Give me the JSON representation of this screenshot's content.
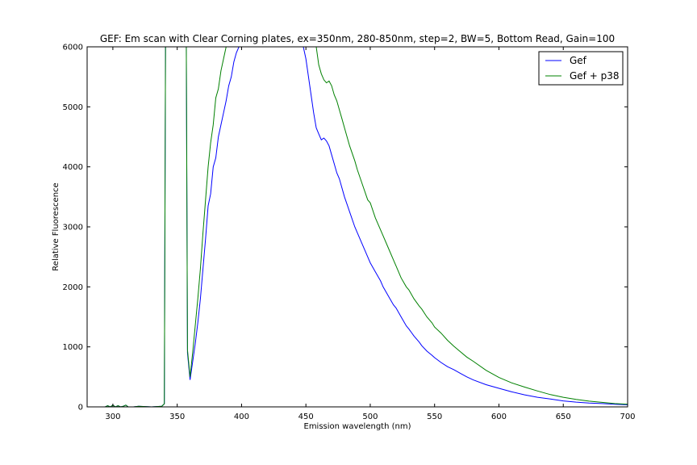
{
  "chart_data": {
    "type": "line",
    "title": "GEF: Em scan with Clear Corning plates, ex=350nm, 280-850nm, step=2, BW=5, Bottom Read, Gain=100",
    "xlabel": "Emission wavelength (nm)",
    "ylabel": "Relative Fluorescence",
    "xlim": [
      280,
      700
    ],
    "ylim": [
      0,
      6000
    ],
    "xticks": [
      300,
      350,
      400,
      450,
      500,
      550,
      600,
      650,
      700
    ],
    "yticks": [
      0,
      1000,
      2000,
      3000,
      4000,
      5000,
      6000
    ],
    "grid": false,
    "legend": "top-right",
    "series": [
      {
        "name": "Gef",
        "color": "#0000ff",
        "x": [
          280,
          290,
          294,
          296,
          298,
          300,
          302,
          304,
          306,
          308,
          310,
          312,
          316,
          320,
          330,
          338,
          340,
          341,
          342,
          344,
          350,
          356,
          357,
          358,
          360,
          362,
          364,
          366,
          368,
          370,
          372,
          374,
          376,
          378,
          380,
          382,
          384,
          386,
          388,
          390,
          392,
          394,
          396,
          398,
          400,
          440,
          446,
          448,
          450,
          452,
          454,
          456,
          458,
          460,
          462,
          464,
          466,
          468,
          470,
          472,
          474,
          476,
          480,
          484,
          488,
          490,
          494,
          498,
          500,
          504,
          508,
          510,
          514,
          518,
          520,
          524,
          528,
          530,
          534,
          538,
          540,
          544,
          548,
          550,
          555,
          560,
          565,
          570,
          575,
          580,
          590,
          600,
          610,
          620,
          630,
          640,
          650,
          660,
          670,
          680,
          690,
          700
        ],
        "y": [
          0,
          0,
          0,
          20,
          0,
          30,
          0,
          20,
          0,
          10,
          30,
          0,
          0,
          10,
          0,
          10,
          50,
          6500,
          6500,
          6500,
          6500,
          6500,
          6500,
          900,
          450,
          750,
          1050,
          1400,
          1800,
          2300,
          2800,
          3350,
          3550,
          4000,
          4150,
          4500,
          4700,
          4900,
          5100,
          5350,
          5500,
          5750,
          5900,
          6000,
          6500,
          6500,
          6300,
          6000,
          5800,
          5500,
          5200,
          4900,
          4650,
          4550,
          4450,
          4480,
          4430,
          4350,
          4200,
          4050,
          3900,
          3800,
          3500,
          3250,
          3000,
          2900,
          2700,
          2500,
          2400,
          2250,
          2100,
          2000,
          1850,
          1700,
          1650,
          1500,
          1350,
          1300,
          1180,
          1080,
          1020,
          930,
          860,
          820,
          740,
          670,
          620,
          560,
          500,
          450,
          370,
          310,
          250,
          200,
          160,
          130,
          100,
          80,
          65,
          55,
          45,
          35
        ]
      },
      {
        "name": "Gef + p38",
        "color": "#008000",
        "x": [
          280,
          290,
          294,
          296,
          298,
          300,
          302,
          304,
          306,
          308,
          310,
          312,
          316,
          320,
          330,
          338,
          340,
          341,
          342,
          344,
          350,
          356,
          357,
          358,
          360,
          362,
          364,
          366,
          368,
          370,
          372,
          374,
          376,
          378,
          380,
          382,
          384,
          386,
          388,
          390,
          392,
          394,
          396,
          456,
          458,
          460,
          462,
          464,
          466,
          468,
          470,
          472,
          474,
          476,
          478,
          480,
          484,
          488,
          490,
          494,
          498,
          500,
          504,
          508,
          510,
          514,
          518,
          520,
          524,
          528,
          530,
          534,
          538,
          540,
          544,
          548,
          550,
          555,
          560,
          565,
          570,
          575,
          580,
          590,
          600,
          610,
          620,
          630,
          640,
          650,
          660,
          670,
          680,
          690,
          700
        ],
        "y": [
          0,
          0,
          0,
          20,
          0,
          30,
          0,
          20,
          0,
          10,
          30,
          0,
          0,
          10,
          0,
          10,
          50,
          6500,
          6500,
          6500,
          6500,
          6500,
          6500,
          950,
          500,
          900,
          1350,
          1800,
          2300,
          2900,
          3450,
          4000,
          4400,
          4700,
          5150,
          5300,
          5600,
          5800,
          6000,
          6500,
          6500,
          6500,
          6500,
          6500,
          6000,
          5700,
          5550,
          5450,
          5400,
          5430,
          5350,
          5200,
          5100,
          4950,
          4800,
          4650,
          4350,
          4100,
          3950,
          3700,
          3450,
          3400,
          3150,
          2950,
          2850,
          2650,
          2450,
          2350,
          2150,
          2000,
          1950,
          1800,
          1680,
          1630,
          1500,
          1400,
          1330,
          1230,
          1110,
          1010,
          920,
          830,
          760,
          610,
          490,
          400,
          330,
          265,
          205,
          160,
          125,
          95,
          75,
          55,
          45
        ]
      }
    ]
  }
}
